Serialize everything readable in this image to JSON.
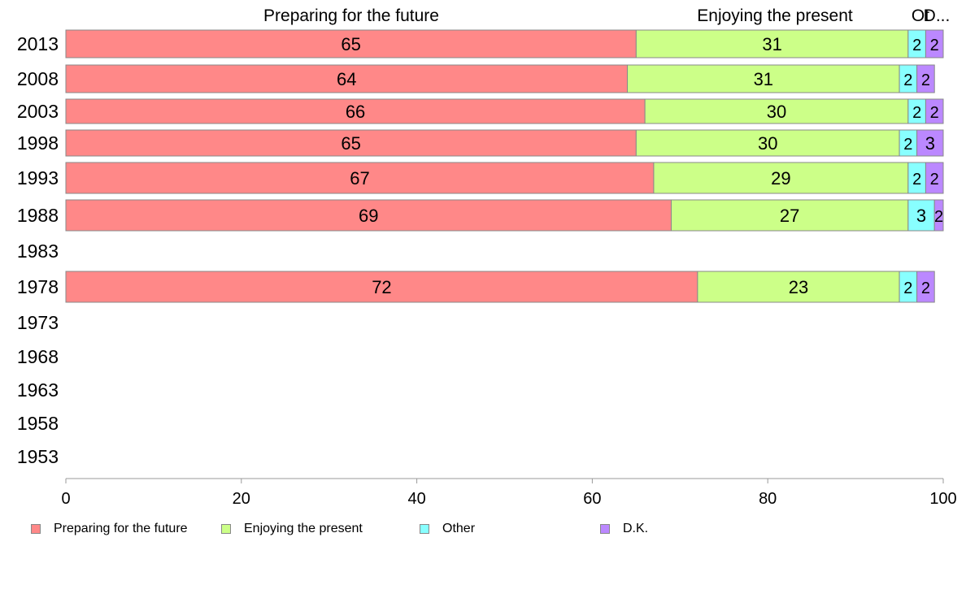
{
  "chart_data": {
    "type": "bar",
    "orientation": "horizontal",
    "stacked": true,
    "categories": [
      "2013",
      "2008",
      "2003",
      "1998",
      "1993",
      "1988",
      "1983",
      "1978",
      "1973",
      "1968",
      "1963",
      "1958",
      "1953"
    ],
    "series": [
      {
        "name": "Preparing for the future",
        "color": "#ff8888",
        "values": [
          65,
          64,
          66,
          65,
          67,
          69,
          null,
          72,
          null,
          null,
          null,
          null,
          null
        ]
      },
      {
        "name": "Enjoying the present",
        "color": "#ccff88",
        "values": [
          31,
          31,
          30,
          30,
          29,
          27,
          null,
          23,
          null,
          null,
          null,
          null,
          null
        ]
      },
      {
        "name": "Other",
        "color": "#88ffff",
        "values": [
          2,
          2,
          2,
          2,
          2,
          3,
          null,
          2,
          null,
          null,
          null,
          null,
          null
        ]
      },
      {
        "name": "D.K.",
        "color": "#bb88ff",
        "values": [
          2,
          2,
          2,
          3,
          2,
          2,
          null,
          2,
          null,
          null,
          null,
          null,
          null
        ]
      }
    ],
    "top_labels": [
      "Preparing for the future",
      "Enjoying the present",
      "Ot",
      "D..."
    ],
    "x_ticks": [
      "0",
      "20",
      "40",
      "60",
      "80",
      "100"
    ],
    "xlim": [
      0,
      100
    ],
    "grid": false,
    "legend_position": "bottom"
  }
}
